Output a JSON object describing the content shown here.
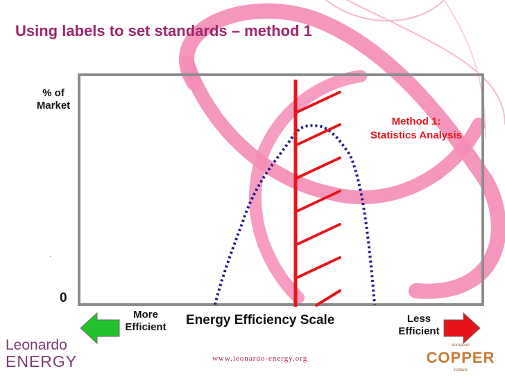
{
  "slide": {
    "title": "Using labels to set standards – method 1",
    "footer_url": "www.leonardo-energy.org",
    "logo_left_line1": "Leonardo",
    "logo_left_line2": "ENERGY",
    "logo_right_small_top": "european",
    "logo_right_main": "COPPER",
    "logo_right_small_bottom": "institute"
  },
  "diagram": {
    "y_label_line1": "% of",
    "y_label_line2": "Market",
    "y_zero": "0",
    "x_label": "Energy Efficiency Scale",
    "left_arrow_label_line1": "More",
    "left_arrow_label_line2": "Efficient",
    "right_arrow_label_line1": "Less",
    "right_arrow_label_line2": "Efficient",
    "method_label_line1": "Method 1:",
    "method_label_line2": "Statistics Analysis"
  },
  "colors": {
    "title": "#a0246e",
    "standard_line": "#e8141c",
    "distribution_curve": "#1a1a8c",
    "left_arrow": "#22c22e",
    "right_arrow": "#e8141c",
    "background_swirl": "#f48cb6"
  }
}
